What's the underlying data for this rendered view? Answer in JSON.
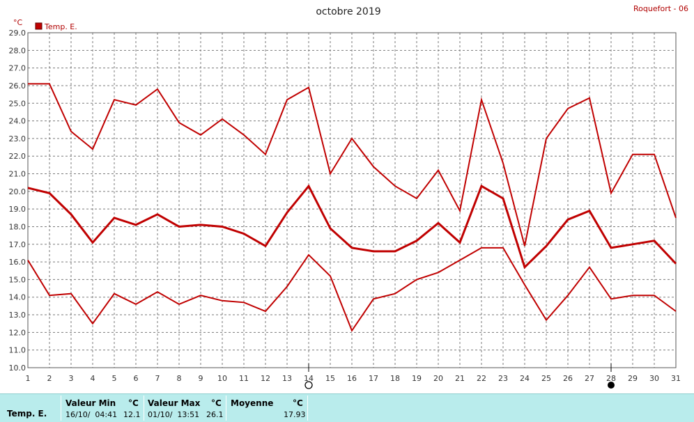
{
  "header": {
    "title": "octobre 2019",
    "station": "Roquefort - 06",
    "unit": "°C",
    "legend_label": "Temp. E."
  },
  "colors": {
    "series": "#c00000",
    "grid": "#7a7a7a",
    "footer_bg": "#b9ecec"
  },
  "chart_data": {
    "type": "line",
    "x": [
      1,
      2,
      3,
      4,
      5,
      6,
      7,
      8,
      9,
      10,
      11,
      12,
      13,
      14,
      15,
      16,
      17,
      18,
      19,
      20,
      21,
      22,
      23,
      24,
      25,
      26,
      27,
      28,
      29,
      30,
      31
    ],
    "ylim": [
      10.0,
      29.0
    ],
    "yticks": [
      "10.0",
      "11.0",
      "12.0",
      "13.0",
      "14.0",
      "15.0",
      "16.0",
      "17.0",
      "18.0",
      "19.0",
      "20.0",
      "21.0",
      "22.0",
      "23.0",
      "24.0",
      "25.0",
      "26.0",
      "27.0",
      "28.0",
      "29.0"
    ],
    "ylabel": "°C",
    "grid": true,
    "legend": "top-left",
    "series": [
      {
        "role": "max",
        "values": [
          26.1,
          26.1,
          23.4,
          22.4,
          25.2,
          24.9,
          25.8,
          23.9,
          23.2,
          24.1,
          23.2,
          22.1,
          25.2,
          25.9,
          21.0,
          23.0,
          21.4,
          20.3,
          19.6,
          21.2,
          18.9,
          25.2,
          21.6,
          16.9,
          23.0,
          24.7,
          25.3,
          19.9,
          22.1,
          22.1,
          18.5
        ]
      },
      {
        "role": "mean",
        "values": [
          20.2,
          19.9,
          18.7,
          17.1,
          18.5,
          18.1,
          18.7,
          18.0,
          18.1,
          18.0,
          17.6,
          16.9,
          18.8,
          20.3,
          17.9,
          16.8,
          16.6,
          16.6,
          17.2,
          18.2,
          17.1,
          20.3,
          19.6,
          15.7,
          16.9,
          18.4,
          18.9,
          16.8,
          17.0,
          17.2,
          15.9
        ]
      },
      {
        "role": "min",
        "values": [
          16.1,
          14.1,
          14.2,
          12.5,
          14.2,
          13.6,
          14.3,
          13.6,
          14.1,
          13.8,
          13.7,
          13.2,
          14.6,
          16.4,
          15.2,
          12.1,
          13.9,
          14.2,
          15.0,
          15.4,
          16.1,
          16.8,
          16.8,
          14.7,
          12.7,
          14.1,
          15.7,
          13.9,
          14.1,
          14.1,
          13.2
        ]
      }
    ],
    "markers": [
      {
        "day": 14,
        "symbol": "open-circle"
      },
      {
        "day": 28,
        "symbol": "filled-circle"
      }
    ]
  },
  "footer": {
    "row_label": "Temp. E.",
    "min": {
      "label": "Valeur Min",
      "unit": "°C",
      "date": "16/10/  04:41",
      "value": "12.1"
    },
    "max": {
      "label": "Valeur Max",
      "unit": "°C",
      "date": "01/10/  13:51",
      "value": "26.1"
    },
    "avg": {
      "label": "Moyenne",
      "unit": "°C",
      "value": "17.93"
    }
  }
}
